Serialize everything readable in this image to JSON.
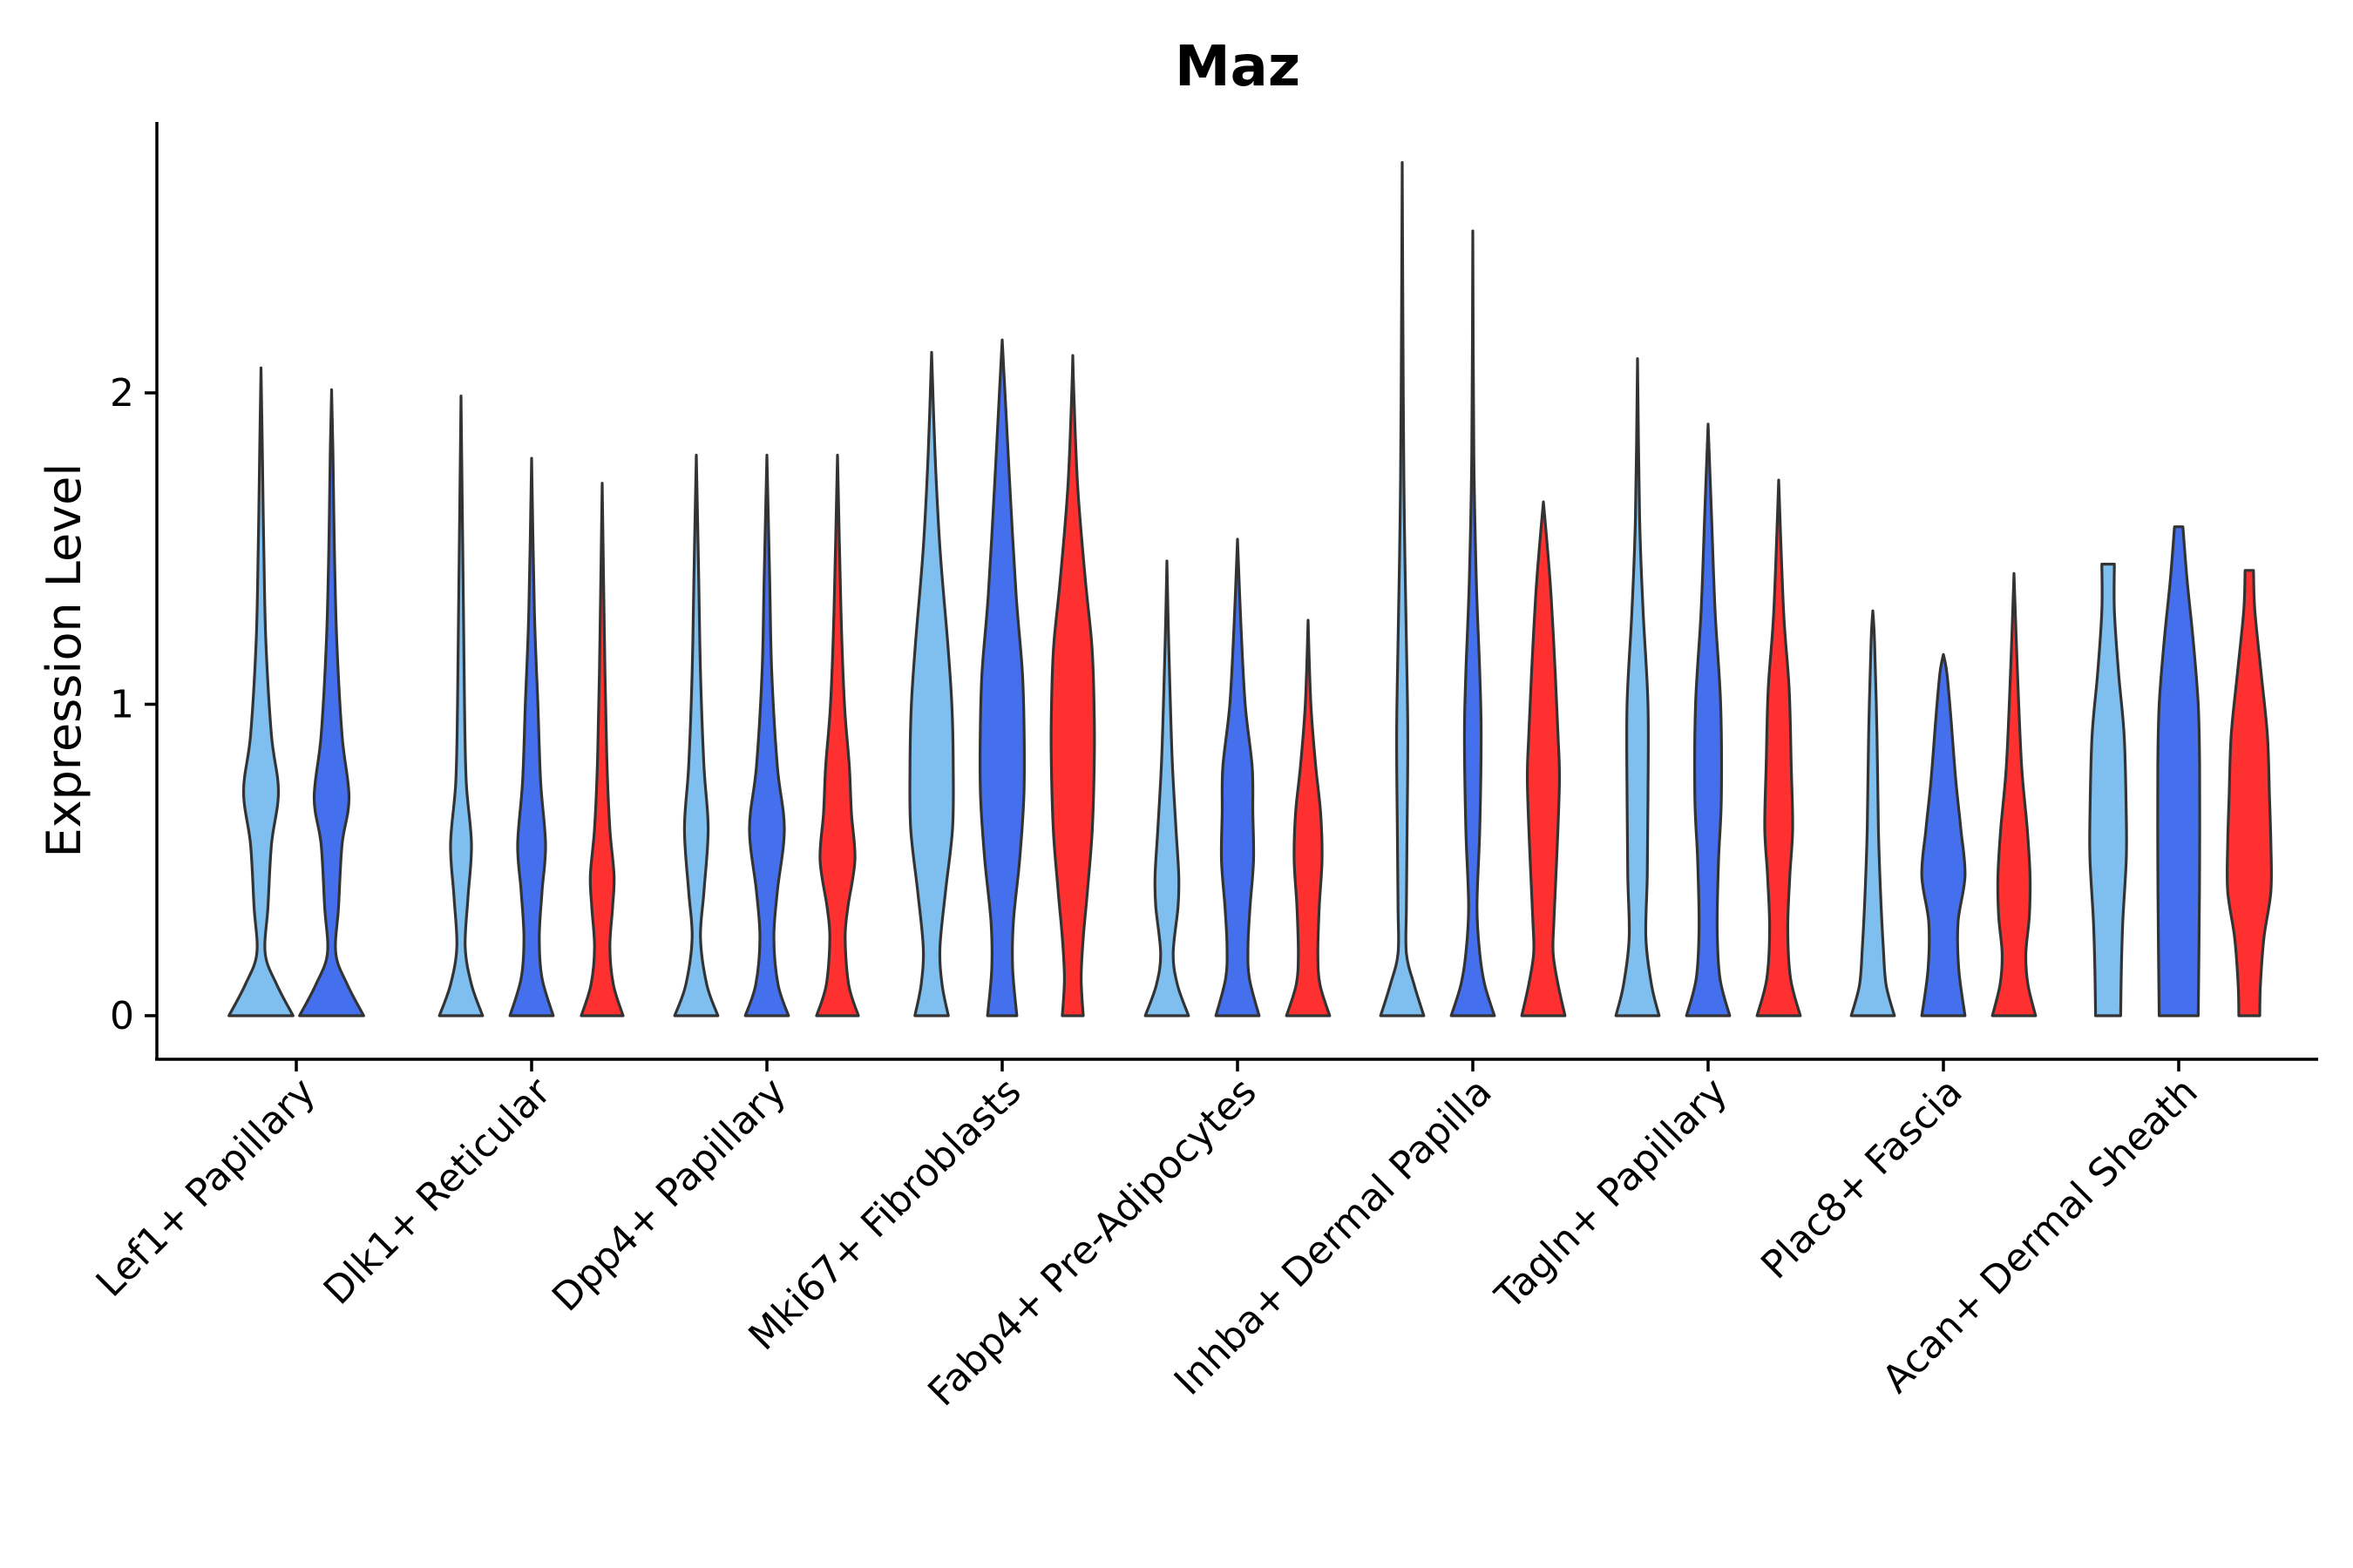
{
  "chart_data": {
    "type": "violin",
    "title": "Maz",
    "xlabel": "",
    "ylabel": "Expression Level",
    "ylim": [
      -0.14,
      2.87
    ],
    "yticks": [
      0,
      1,
      2
    ],
    "grid": false,
    "legend": "none",
    "colors": {
      "series_1": "#7fbfef",
      "series_2": "#4570ed",
      "series_3": "#ff3030",
      "outline": "#333333"
    },
    "categories": [
      "Lef1+ Papillary",
      "Dlk1+ Reticular",
      "Dpp4+ Papillary",
      "Mki67+ Fibroblasts",
      "Fabp4+ Pre-Adipocytes",
      "Inhba+ Dermal Papilla",
      "Tagln+ Papillary",
      "Plac8+ Fascia",
      "Acan+ Dermal Sheath"
    ],
    "violins": [
      {
        "category": 0,
        "series": 1,
        "min": 0,
        "max": 2.08,
        "profile": [
          [
            0,
            0.92
          ],
          [
            0.1,
            0.45
          ],
          [
            0.2,
            0.12
          ],
          [
            0.35,
            0.2
          ],
          [
            0.55,
            0.3
          ],
          [
            0.72,
            0.5
          ],
          [
            0.9,
            0.3
          ],
          [
            1.2,
            0.14
          ],
          [
            1.5,
            0.08
          ],
          [
            1.8,
            0.04
          ],
          [
            2.08,
            0
          ]
        ]
      },
      {
        "category": 0,
        "series": 2,
        "min": 0,
        "max": 2.01,
        "profile": [
          [
            0,
            0.92
          ],
          [
            0.1,
            0.45
          ],
          [
            0.2,
            0.12
          ],
          [
            0.35,
            0.2
          ],
          [
            0.55,
            0.3
          ],
          [
            0.7,
            0.5
          ],
          [
            0.9,
            0.3
          ],
          [
            1.2,
            0.15
          ],
          [
            1.5,
            0.08
          ],
          [
            1.8,
            0.04
          ],
          [
            2.01,
            0
          ]
        ]
      },
      {
        "category": 1,
        "series": 1,
        "min": 0,
        "max": 1.99,
        "profile": [
          [
            0,
            0.62
          ],
          [
            0.1,
            0.3
          ],
          [
            0.22,
            0.12
          ],
          [
            0.38,
            0.2
          ],
          [
            0.55,
            0.3
          ],
          [
            0.75,
            0.15
          ],
          [
            1.0,
            0.1
          ],
          [
            1.4,
            0.06
          ],
          [
            1.99,
            0
          ]
        ]
      },
      {
        "category": 1,
        "series": 2,
        "min": 0,
        "max": 1.79,
        "profile": [
          [
            0,
            0.62
          ],
          [
            0.12,
            0.3
          ],
          [
            0.25,
            0.22
          ],
          [
            0.4,
            0.3
          ],
          [
            0.55,
            0.4
          ],
          [
            0.75,
            0.26
          ],
          [
            1.0,
            0.18
          ],
          [
            1.3,
            0.08
          ],
          [
            1.79,
            0
          ]
        ]
      },
      {
        "category": 1,
        "series": 3,
        "min": 0,
        "max": 1.71,
        "profile": [
          [
            0,
            0.6
          ],
          [
            0.1,
            0.32
          ],
          [
            0.22,
            0.22
          ],
          [
            0.35,
            0.3
          ],
          [
            0.45,
            0.34
          ],
          [
            0.6,
            0.22
          ],
          [
            0.8,
            0.14
          ],
          [
            1.1,
            0.08
          ],
          [
            1.71,
            0
          ]
        ]
      },
      {
        "category": 2,
        "series": 1,
        "min": 0,
        "max": 1.8,
        "profile": [
          [
            0,
            0.62
          ],
          [
            0.1,
            0.3
          ],
          [
            0.25,
            0.12
          ],
          [
            0.4,
            0.22
          ],
          [
            0.6,
            0.34
          ],
          [
            0.8,
            0.22
          ],
          [
            1.1,
            0.12
          ],
          [
            1.4,
            0.07
          ],
          [
            1.8,
            0
          ]
        ]
      },
      {
        "category": 2,
        "series": 2,
        "min": 0,
        "max": 1.8,
        "profile": [
          [
            0,
            0.62
          ],
          [
            0.1,
            0.32
          ],
          [
            0.25,
            0.2
          ],
          [
            0.4,
            0.3
          ],
          [
            0.6,
            0.5
          ],
          [
            0.8,
            0.3
          ],
          [
            1.1,
            0.14
          ],
          [
            1.4,
            0.08
          ],
          [
            1.8,
            0
          ]
        ]
      },
      {
        "category": 2,
        "series": 3,
        "min": 0,
        "max": 1.8,
        "profile": [
          [
            0,
            0.6
          ],
          [
            0.1,
            0.32
          ],
          [
            0.25,
            0.22
          ],
          [
            0.35,
            0.3
          ],
          [
            0.5,
            0.5
          ],
          [
            0.65,
            0.4
          ],
          [
            0.8,
            0.34
          ],
          [
            1.0,
            0.2
          ],
          [
            1.3,
            0.1
          ],
          [
            1.8,
            0
          ]
        ]
      },
      {
        "category": 3,
        "series": 1,
        "min": 0,
        "max": 2.13,
        "profile": [
          [
            0,
            0.48
          ],
          [
            0.1,
            0.3
          ],
          [
            0.22,
            0.24
          ],
          [
            0.4,
            0.4
          ],
          [
            0.6,
            0.6
          ],
          [
            0.8,
            0.62
          ],
          [
            1.0,
            0.58
          ],
          [
            1.2,
            0.46
          ],
          [
            1.5,
            0.24
          ],
          [
            1.8,
            0.1
          ],
          [
            2.13,
            0
          ]
        ]
      },
      {
        "category": 3,
        "series": 2,
        "min": 0,
        "max": 2.17,
        "profile": [
          [
            0,
            0.42
          ],
          [
            0.15,
            0.3
          ],
          [
            0.3,
            0.32
          ],
          [
            0.5,
            0.5
          ],
          [
            0.7,
            0.62
          ],
          [
            0.9,
            0.63
          ],
          [
            1.1,
            0.58
          ],
          [
            1.35,
            0.4
          ],
          [
            1.7,
            0.22
          ],
          [
            2.0,
            0.08
          ],
          [
            2.17,
            0
          ]
        ]
      },
      {
        "category": 3,
        "series": 3,
        "min": 0,
        "max": 2.12,
        "profile": [
          [
            0,
            0.3
          ],
          [
            0.12,
            0.24
          ],
          [
            0.25,
            0.3
          ],
          [
            0.4,
            0.42
          ],
          [
            0.6,
            0.56
          ],
          [
            0.85,
            0.62
          ],
          [
            1.05,
            0.6
          ],
          [
            1.2,
            0.54
          ],
          [
            1.4,
            0.36
          ],
          [
            1.7,
            0.14
          ],
          [
            2.0,
            0.03
          ],
          [
            2.12,
            0
          ]
        ]
      },
      {
        "category": 4,
        "series": 1,
        "min": 0,
        "max": 1.46,
        "profile": [
          [
            0,
            0.62
          ],
          [
            0.1,
            0.3
          ],
          [
            0.2,
            0.18
          ],
          [
            0.35,
            0.32
          ],
          [
            0.45,
            0.34
          ],
          [
            0.6,
            0.26
          ],
          [
            0.8,
            0.16
          ],
          [
            1.0,
            0.1
          ],
          [
            1.2,
            0.05
          ],
          [
            1.46,
            0
          ]
        ]
      },
      {
        "category": 4,
        "series": 2,
        "min": 0,
        "max": 1.53,
        "profile": [
          [
            0,
            0.62
          ],
          [
            0.12,
            0.34
          ],
          [
            0.22,
            0.3
          ],
          [
            0.35,
            0.36
          ],
          [
            0.5,
            0.46
          ],
          [
            0.65,
            0.44
          ],
          [
            0.8,
            0.42
          ],
          [
            1.0,
            0.22
          ],
          [
            1.25,
            0.1
          ],
          [
            1.53,
            0
          ]
        ]
      },
      {
        "category": 4,
        "series": 3,
        "min": 0,
        "max": 1.27,
        "profile": [
          [
            0,
            0.62
          ],
          [
            0.1,
            0.34
          ],
          [
            0.2,
            0.28
          ],
          [
            0.35,
            0.32
          ],
          [
            0.5,
            0.4
          ],
          [
            0.65,
            0.36
          ],
          [
            0.8,
            0.22
          ],
          [
            1.0,
            0.08
          ],
          [
            1.27,
            0
          ]
        ]
      },
      {
        "category": 5,
        "series": 1,
        "min": 0,
        "max": 2.74,
        "profile": [
          [
            0,
            0.62
          ],
          [
            0.1,
            0.34
          ],
          [
            0.2,
            0.12
          ],
          [
            0.35,
            0.12
          ],
          [
            0.6,
            0.14
          ],
          [
            0.9,
            0.16
          ],
          [
            1.2,
            0.12
          ],
          [
            1.6,
            0.06
          ],
          [
            2.0,
            0.03
          ],
          [
            2.74,
            0
          ]
        ]
      },
      {
        "category": 5,
        "series": 2,
        "min": 0,
        "max": 2.52,
        "profile": [
          [
            0,
            0.62
          ],
          [
            0.1,
            0.34
          ],
          [
            0.2,
            0.2
          ],
          [
            0.35,
            0.12
          ],
          [
            0.6,
            0.2
          ],
          [
            0.9,
            0.24
          ],
          [
            1.1,
            0.2
          ],
          [
            1.4,
            0.1
          ],
          [
            1.8,
            0.03
          ],
          [
            2.52,
            0
          ]
        ]
      },
      {
        "category": 5,
        "series": 3,
        "min": 0,
        "max": 1.65,
        "profile": [
          [
            0,
            0.62
          ],
          [
            0.1,
            0.42
          ],
          [
            0.2,
            0.28
          ],
          [
            0.3,
            0.3
          ],
          [
            0.5,
            0.38
          ],
          [
            0.75,
            0.46
          ],
          [
            0.9,
            0.42
          ],
          [
            1.1,
            0.34
          ],
          [
            1.35,
            0.22
          ],
          [
            1.55,
            0.08
          ],
          [
            1.65,
            0
          ]
        ]
      },
      {
        "category": 6,
        "series": 1,
        "min": 0,
        "max": 2.11,
        "profile": [
          [
            0,
            0.62
          ],
          [
            0.1,
            0.4
          ],
          [
            0.25,
            0.24
          ],
          [
            0.45,
            0.28
          ],
          [
            0.7,
            0.3
          ],
          [
            1.0,
            0.3
          ],
          [
            1.3,
            0.16
          ],
          [
            1.6,
            0.06
          ],
          [
            2.11,
            0
          ]
        ]
      },
      {
        "category": 6,
        "series": 2,
        "min": 0,
        "max": 1.9,
        "profile": [
          [
            0,
            0.62
          ],
          [
            0.12,
            0.34
          ],
          [
            0.28,
            0.26
          ],
          [
            0.5,
            0.3
          ],
          [
            0.7,
            0.38
          ],
          [
            1.0,
            0.36
          ],
          [
            1.3,
            0.2
          ],
          [
            1.6,
            0.1
          ],
          [
            1.9,
            0
          ]
        ]
      },
      {
        "category": 6,
        "series": 3,
        "min": 0,
        "max": 1.72,
        "profile": [
          [
            0,
            0.62
          ],
          [
            0.12,
            0.34
          ],
          [
            0.28,
            0.26
          ],
          [
            0.45,
            0.32
          ],
          [
            0.6,
            0.4
          ],
          [
            0.8,
            0.36
          ],
          [
            1.05,
            0.3
          ],
          [
            1.3,
            0.14
          ],
          [
            1.72,
            0
          ]
        ]
      },
      {
        "category": 7,
        "series": 1,
        "min": 0,
        "max": 1.3,
        "profile": [
          [
            0,
            0.62
          ],
          [
            0.1,
            0.38
          ],
          [
            0.22,
            0.3
          ],
          [
            0.4,
            0.22
          ],
          [
            0.6,
            0.16
          ],
          [
            0.9,
            0.12
          ],
          [
            1.2,
            0.05
          ],
          [
            1.3,
            0
          ]
        ]
      },
      {
        "category": 7,
        "series": 2,
        "min": 0,
        "max": 1.16,
        "profile": [
          [
            0,
            0.62
          ],
          [
            0.15,
            0.44
          ],
          [
            0.3,
            0.42
          ],
          [
            0.45,
            0.62
          ],
          [
            0.6,
            0.5
          ],
          [
            0.75,
            0.36
          ],
          [
            0.95,
            0.22
          ],
          [
            1.1,
            0.1
          ],
          [
            1.16,
            0
          ]
        ]
      },
      {
        "category": 7,
        "series": 3,
        "min": 0,
        "max": 1.42,
        "profile": [
          [
            0,
            0.62
          ],
          [
            0.1,
            0.4
          ],
          [
            0.2,
            0.34
          ],
          [
            0.32,
            0.44
          ],
          [
            0.45,
            0.46
          ],
          [
            0.6,
            0.38
          ],
          [
            0.8,
            0.22
          ],
          [
            1.1,
            0.1
          ],
          [
            1.42,
            0
          ]
        ]
      },
      {
        "category": 8,
        "series": 1,
        "min": 0,
        "max": 1.45,
        "profile": [
          [
            0,
            0.36
          ],
          [
            0.15,
            0.38
          ],
          [
            0.3,
            0.42
          ],
          [
            0.5,
            0.52
          ],
          [
            0.65,
            0.52
          ],
          [
            0.9,
            0.46
          ],
          [
            1.1,
            0.3
          ],
          [
            1.3,
            0.18
          ],
          [
            1.45,
            0.18
          ]
        ]
      },
      {
        "category": 8,
        "series": 2,
        "min": 0,
        "max": 1.57,
        "profile": [
          [
            0,
            0.56
          ],
          [
            0.2,
            0.58
          ],
          [
            0.5,
            0.6
          ],
          [
            0.8,
            0.6
          ],
          [
            1.0,
            0.56
          ],
          [
            1.2,
            0.42
          ],
          [
            1.4,
            0.24
          ],
          [
            1.57,
            0.12
          ]
        ]
      },
      {
        "category": 8,
        "series": 3,
        "min": 0,
        "max": 1.43,
        "profile": [
          [
            0,
            0.3
          ],
          [
            0.1,
            0.32
          ],
          [
            0.25,
            0.42
          ],
          [
            0.4,
            0.62
          ],
          [
            0.55,
            0.62
          ],
          [
            0.7,
            0.58
          ],
          [
            0.9,
            0.52
          ],
          [
            1.1,
            0.34
          ],
          [
            1.3,
            0.16
          ],
          [
            1.43,
            0.12
          ]
        ]
      }
    ]
  }
}
